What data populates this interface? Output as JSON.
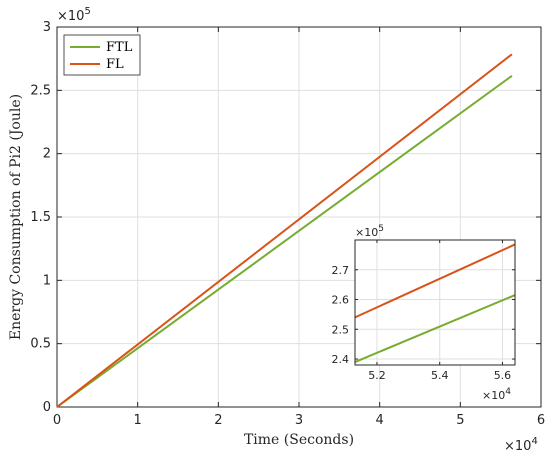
{
  "chart_data": [
    {
      "type": "line",
      "xlabel": "Time (Seconds)",
      "ylabel": "Energy Consumption of Pi2 (Joule)",
      "x_exponent": "4",
      "y_exponent": "5",
      "xlim": [
        0,
        60000
      ],
      "ylim": [
        0,
        300000
      ],
      "xticks": [
        0,
        10000,
        20000,
        30000,
        40000,
        50000,
        60000
      ],
      "xtick_labels": [
        "0",
        "1",
        "2",
        "3",
        "4",
        "5",
        "6"
      ],
      "yticks": [
        0,
        50000,
        100000,
        150000,
        200000,
        250000,
        300000
      ],
      "ytick_labels": [
        "0",
        "0.5",
        "1",
        "1.5",
        "2",
        "2.5",
        "3"
      ],
      "grid": true,
      "legend_position": "top-left",
      "series": [
        {
          "name": "FTL",
          "color": "#77ac30",
          "x": [
            0,
            56400
          ],
          "y": [
            0,
            261500
          ]
        },
        {
          "name": "FL",
          "color": "#d95319",
          "x": [
            0,
            56400
          ],
          "y": [
            0,
            278500
          ]
        }
      ]
    },
    {
      "type": "line",
      "inset": true,
      "x_exponent": "4",
      "y_exponent": "5",
      "xlim": [
        51300,
        56400
      ],
      "ylim": [
        238000,
        280000
      ],
      "xticks": [
        52000,
        54000,
        56000
      ],
      "xtick_labels": [
        "5.2",
        "5.4",
        "5.6"
      ],
      "yticks": [
        240000,
        250000,
        260000,
        270000
      ],
      "ytick_labels": [
        "2.4",
        "2.5",
        "2.6",
        "2.7"
      ],
      "grid": true,
      "series": [
        {
          "name": "FTL",
          "color": "#77ac30",
          "x": [
            51300,
            56400
          ],
          "y": [
            239000,
            261500
          ]
        },
        {
          "name": "FL",
          "color": "#d95319",
          "x": [
            51300,
            56400
          ],
          "y": [
            254000,
            278500
          ]
        }
      ]
    }
  ]
}
